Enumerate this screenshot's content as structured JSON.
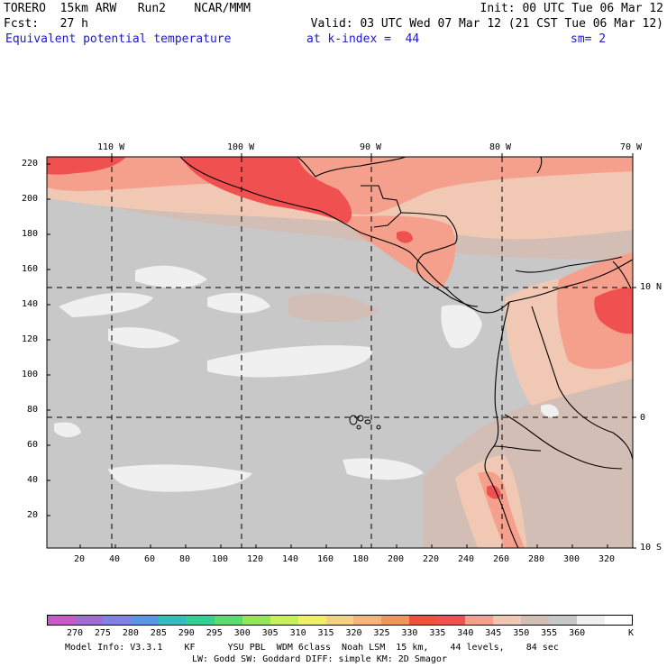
{
  "header": {
    "line1_left": "TORERO  15km ARW   Run2    NCAR/MMM",
    "line1_right": "Init: 00 UTC Tue 06 Mar 12",
    "line2_left": "Fcst:   27 h",
    "line2_right": "Valid: 03 UTC Wed 07 Mar 12 (21 CST Tue 06 Mar 12)",
    "line3_field": "Equivalent potential temperature",
    "line3_level": "at k-index =  44",
    "line3_smooth": "sm= 2"
  },
  "map": {
    "top_labels": [
      "110 W",
      "100 W",
      "90 W",
      "80 W",
      "70 W"
    ],
    "right_labels": [
      "10 N",
      "0",
      "10 S"
    ],
    "y_ticks": [
      "220",
      "200",
      "180",
      "160",
      "140",
      "120",
      "100",
      "80",
      "60",
      "40",
      "20"
    ],
    "x_ticks": [
      "20",
      "40",
      "60",
      "80",
      "100",
      "120",
      "140",
      "160",
      "180",
      "200",
      "220",
      "240",
      "260",
      "280",
      "300",
      "320"
    ]
  },
  "colorbar": {
    "labels": [
      "270",
      "275",
      "280",
      "285",
      "290",
      "295",
      "300",
      "305",
      "310",
      "315",
      "320",
      "325",
      "330",
      "335",
      "340",
      "345",
      "350",
      "355",
      "360"
    ],
    "unit": "K",
    "colors": [
      "#c85ac8",
      "#a06ed2",
      "#8282e6",
      "#5a96e6",
      "#32bebe",
      "#32d296",
      "#5adc6e",
      "#96e65a",
      "#c8f05a",
      "#f0f064",
      "#f5d282",
      "#f5b478",
      "#f0965a",
      "#f0503c",
      "#f05050",
      "#f5a08c",
      "#f0c8b4",
      "#d2beb4",
      "#c8c8c8",
      "#f0f0f0",
      "#ffffff"
    ]
  },
  "footer": {
    "line1": "Model Info: V3.3.1    KF      YSU PBL  WDM 6class  Noah LSM  15 km,    44 levels,    84 sec",
    "line2": "LW: Godd SW: Goddard DIFF: simple KM: 2D Smagor"
  }
}
